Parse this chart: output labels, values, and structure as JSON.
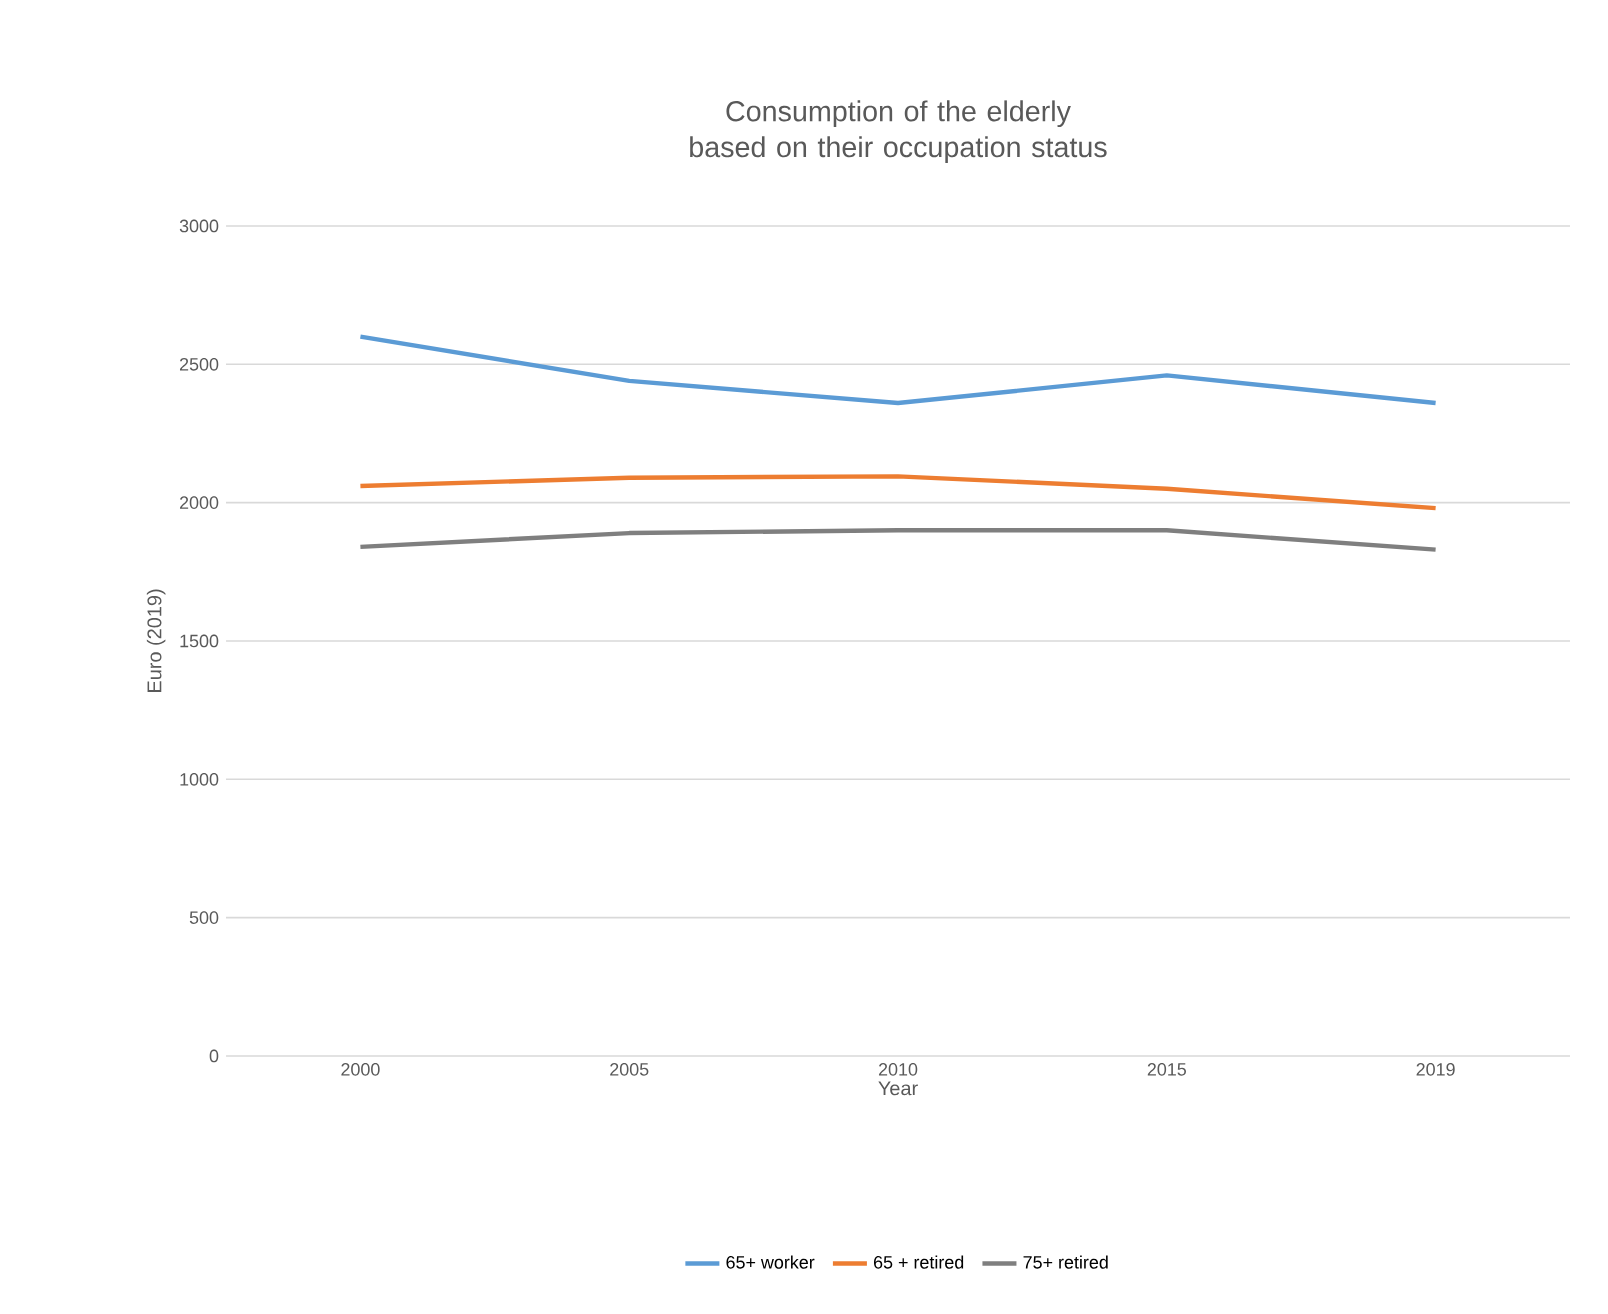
{
  "chart_data": {
    "type": "line",
    "title": "Consumption of the elderly based on their occupation status",
    "xlabel": "Year",
    "ylabel": "Euro (2019)",
    "categories": [
      "2000",
      "2005",
      "2010",
      "2015",
      "2019"
    ],
    "series": [
      {
        "name": "65+ worker",
        "color": "#5b9bd5",
        "values": [
          2600,
          2440,
          2360,
          2460,
          2360
        ]
      },
      {
        "name": "65 + retired",
        "color": "#ed7d31",
        "values": [
          2060,
          2090,
          2095,
          2050,
          1980
        ]
      },
      {
        "name": "75+ retired",
        "color": "#7f7f7f",
        "values": [
          1840,
          1890,
          1900,
          1900,
          1830
        ]
      }
    ],
    "ylim": [
      0,
      3000
    ],
    "yticks": [
      0,
      500,
      1000,
      1500,
      2000,
      2500,
      3000
    ],
    "grid": "y",
    "legend": "bottom",
    "marker": "none",
    "line_style": "solid"
  }
}
